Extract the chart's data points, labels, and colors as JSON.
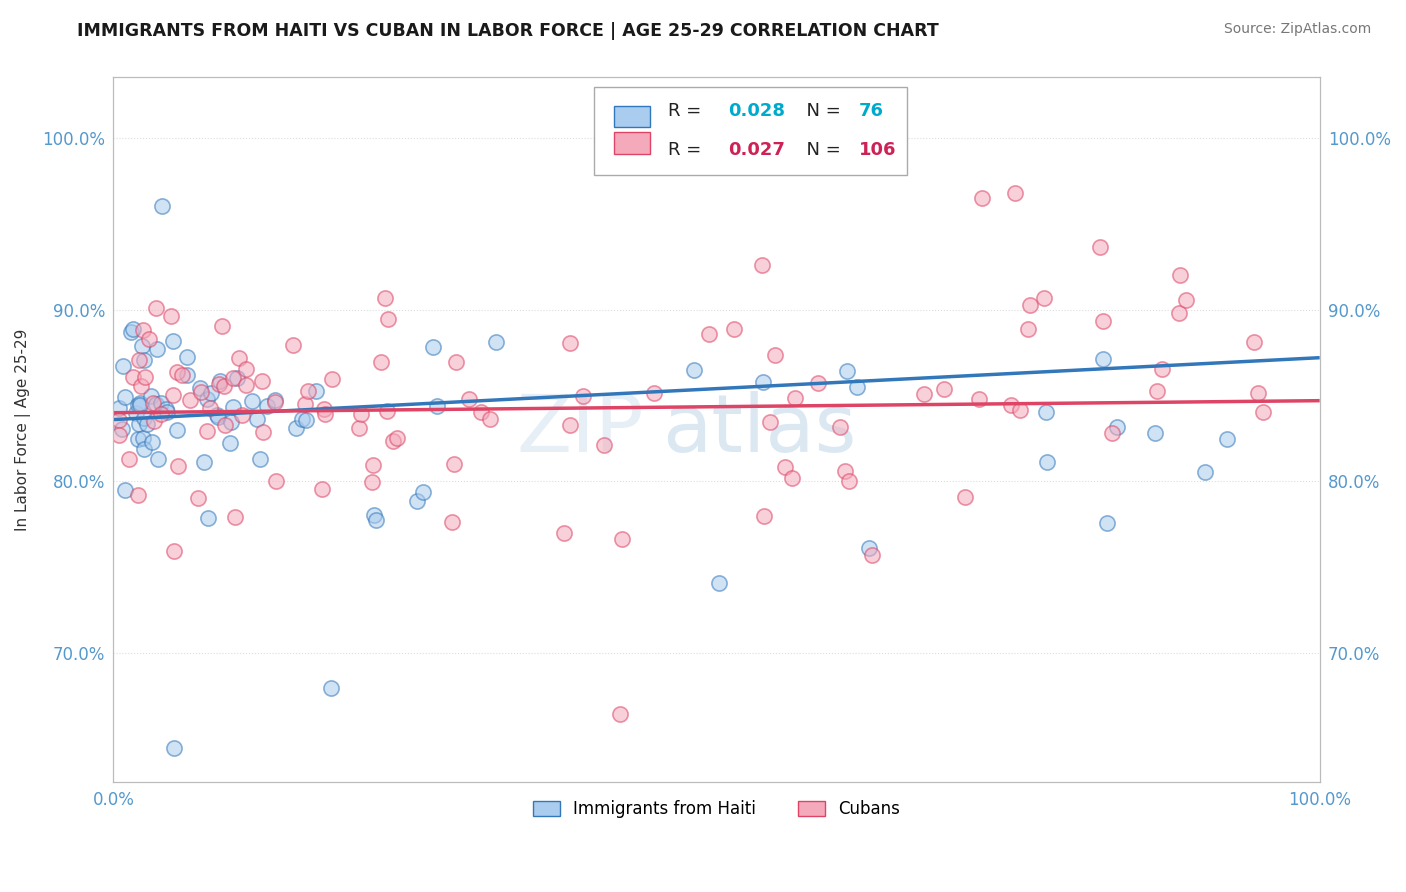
{
  "title": "IMMIGRANTS FROM HAITI VS CUBAN IN LABOR FORCE | AGE 25-29 CORRELATION CHART",
  "source": "Source: ZipAtlas.com",
  "ylabel": "In Labor Force | Age 25-29",
  "x_min": 0.0,
  "x_max": 1.0,
  "y_min": 0.625,
  "y_max": 1.035,
  "haiti_color": "#aaccee",
  "cuba_color": "#f4aabb",
  "haiti_R": 0.028,
  "haiti_N": 76,
  "cuba_R": 0.027,
  "cuba_N": 106,
  "haiti_line_color": "#3377bb",
  "cuba_line_color": "#dd4466",
  "haiti_R_color": "#00aacc",
  "cuba_R_color": "#cc2255",
  "legend_label_haiti": "Immigrants from Haiti",
  "legend_label_cuba": "Cubans",
  "watermark_zip": "ZIP",
  "watermark_atlas": "atlas",
  "y_ticks": [
    0.7,
    0.8,
    0.9,
    1.0
  ],
  "y_tick_labels": [
    "70.0%",
    "80.0%",
    "90.0%",
    "100.0%"
  ],
  "tick_color": "#5599cc",
  "grid_color": "#dddddd"
}
